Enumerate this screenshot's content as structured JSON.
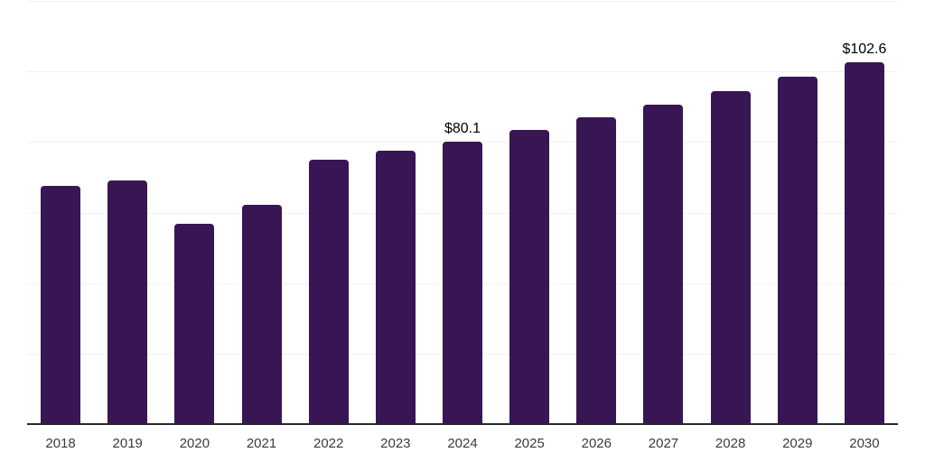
{
  "chart_data": {
    "type": "bar",
    "title": "",
    "xlabel": "",
    "ylabel": "",
    "categories": [
      "2018",
      "2019",
      "2020",
      "2021",
      "2022",
      "2023",
      "2024",
      "2025",
      "2026",
      "2027",
      "2028",
      "2029",
      "2030"
    ],
    "values": [
      67.6,
      69.1,
      56.8,
      62.2,
      75.0,
      77.6,
      80.1,
      83.5,
      87.0,
      90.7,
      94.5,
      98.5,
      102.6
    ],
    "data_labels": {
      "2024": "$80.1",
      "2030": "$102.6"
    },
    "value_prefix": "$",
    "ylim": [
      0,
      120
    ],
    "grid_step": 20,
    "grid": true,
    "legend": false,
    "colors": {
      "bar": "#381653",
      "axis_line": "#27262f",
      "gridline": "#f1f1f1",
      "tick_label": "#3b3b3b",
      "value_label": "#000000",
      "background": "#ffffff"
    }
  }
}
